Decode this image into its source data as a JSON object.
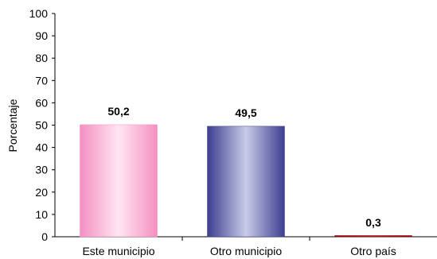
{
  "chart_data": {
    "type": "bar",
    "categories": [
      "Este municipio",
      "Otro  municipio",
      "Otro país"
    ],
    "values": [
      50.2,
      49.5,
      0.3
    ],
    "value_labels": [
      "50,2",
      "49,5",
      "0,3"
    ],
    "ylabel": "Porcentaje",
    "xlabel": "",
    "ylim": [
      0,
      100
    ],
    "y_ticks": [
      "0",
      "10",
      "20",
      "30",
      "40",
      "50",
      "60",
      "70",
      "80",
      "90",
      "100"
    ],
    "grid": false,
    "legend": "none",
    "bar_colors": [
      {
        "edge": "#f48fc1",
        "mid": "#ffe6f2"
      },
      {
        "edge": "#3b3f8f",
        "mid": "#c9cbe8"
      },
      {
        "edge": "#8b0000",
        "mid": "#b22222"
      }
    ]
  }
}
